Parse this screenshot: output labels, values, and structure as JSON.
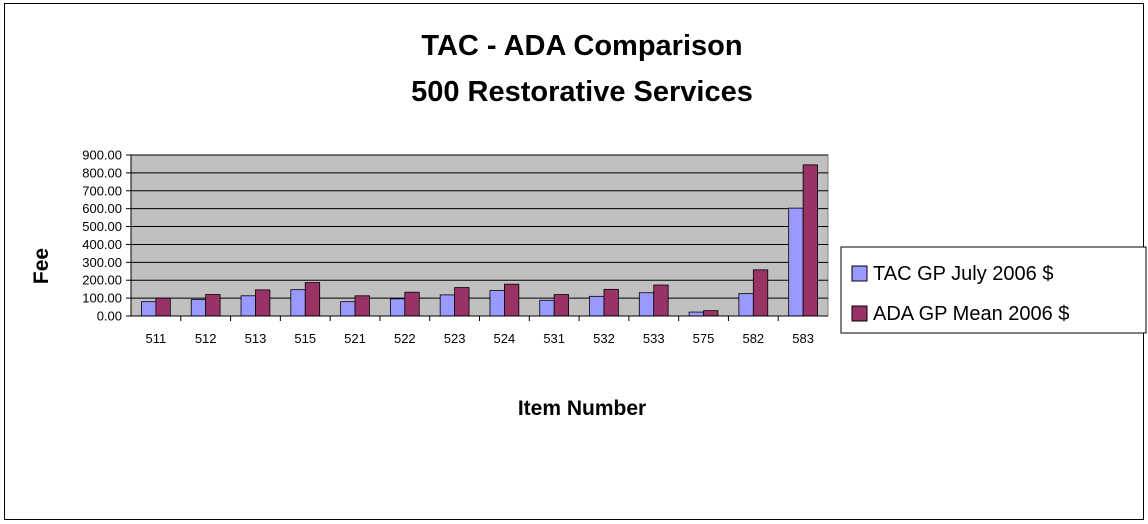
{
  "chart_data": {
    "type": "bar",
    "title": "TAC - ADA Comparison",
    "subtitle": "500 Restorative Services",
    "xlabel": "Item Number",
    "ylabel": "Fee",
    "ylim": [
      0,
      900
    ],
    "yticks": [
      "0.00",
      "100.00",
      "200.00",
      "300.00",
      "400.00",
      "500.00",
      "600.00",
      "700.00",
      "800.00",
      "900.00"
    ],
    "grid": true,
    "legend_position": "right",
    "plot_background": "#C0C0C0",
    "categories": [
      "511",
      "512",
      "513",
      "515",
      "521",
      "522",
      "523",
      "524",
      "531",
      "532",
      "533",
      "575",
      "582",
      "583"
    ],
    "series": [
      {
        "name": "TAC GP July 2006 $",
        "color": "#9999FF",
        "values": [
          80,
          92,
          113,
          147,
          80,
          96,
          118,
          142,
          88,
          110,
          130,
          22,
          125,
          603
        ]
      },
      {
        "name": "ADA GP Mean 2006 $",
        "color": "#993366",
        "values": [
          100,
          120,
          146,
          187,
          113,
          133,
          159,
          178,
          120,
          149,
          173,
          30,
          258,
          845
        ]
      }
    ]
  }
}
